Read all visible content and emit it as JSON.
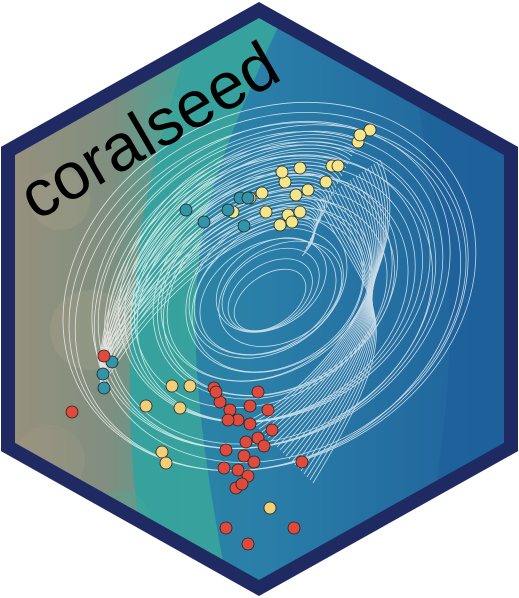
{
  "logo": {
    "title": "coralseed",
    "colors": {
      "border": "#1f2a63",
      "reef_sand": "#8f8876",
      "reef_green": "#3aa79c",
      "lagoon": "#2f86a6",
      "deep_water": "#1e5f9a",
      "track": "#ffffff",
      "point_yellow": "#f3e58a",
      "point_teal": "#3194a8",
      "point_red": "#e04a3c",
      "point_orange": "#f4cf77"
    },
    "icon": "coralseed-hex-sticker"
  }
}
